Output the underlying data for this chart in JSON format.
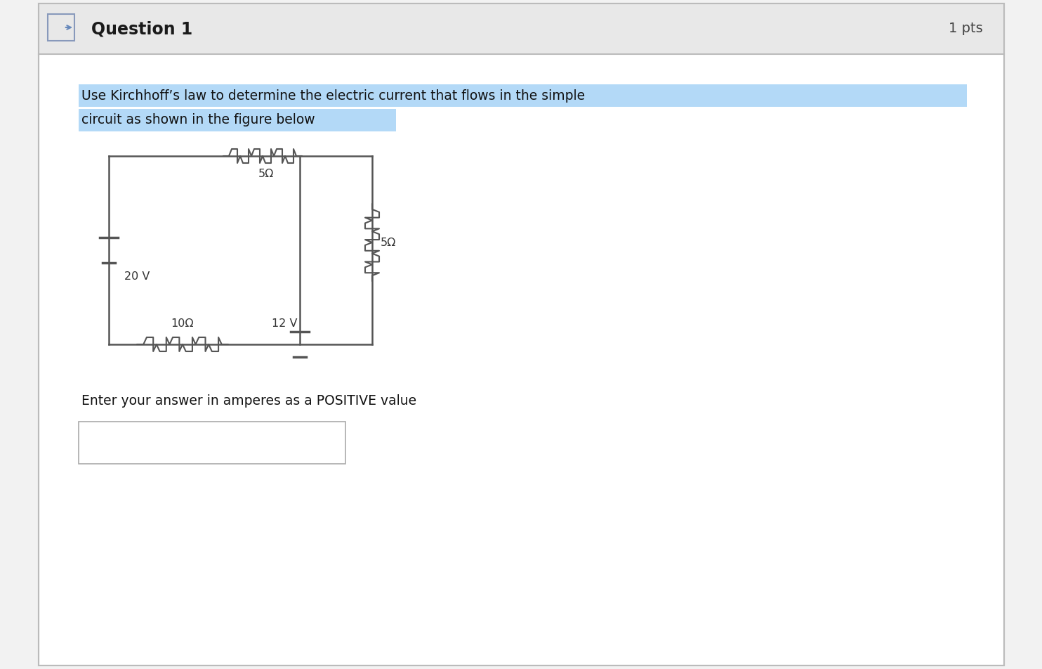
{
  "bg_outer": "#f2f2f2",
  "bg_header": "#e8e8e8",
  "bg_content": "#ffffff",
  "bg_highlight": "#b3d9f7",
  "header_text": "Question 1",
  "pts_text": "1 pts",
  "question_line1": "Use Kirchhoff’s law to determine the electric current that flows in the simple",
  "question_line2": "circuit as shown in the figure below",
  "answer_label": "Enter your answer in amperes as a POSITIVE value",
  "header_fontsize": 17,
  "body_fontsize": 13.5,
  "pts_fontsize": 14,
  "outer_border_color": "#bbbbbb",
  "circuit": {
    "label_20V": "20 V",
    "label_5ohm_top": "5Ω",
    "label_5ohm_right": "5Ω",
    "label_10ohm": "10Ω",
    "label_12V": "12 V"
  }
}
